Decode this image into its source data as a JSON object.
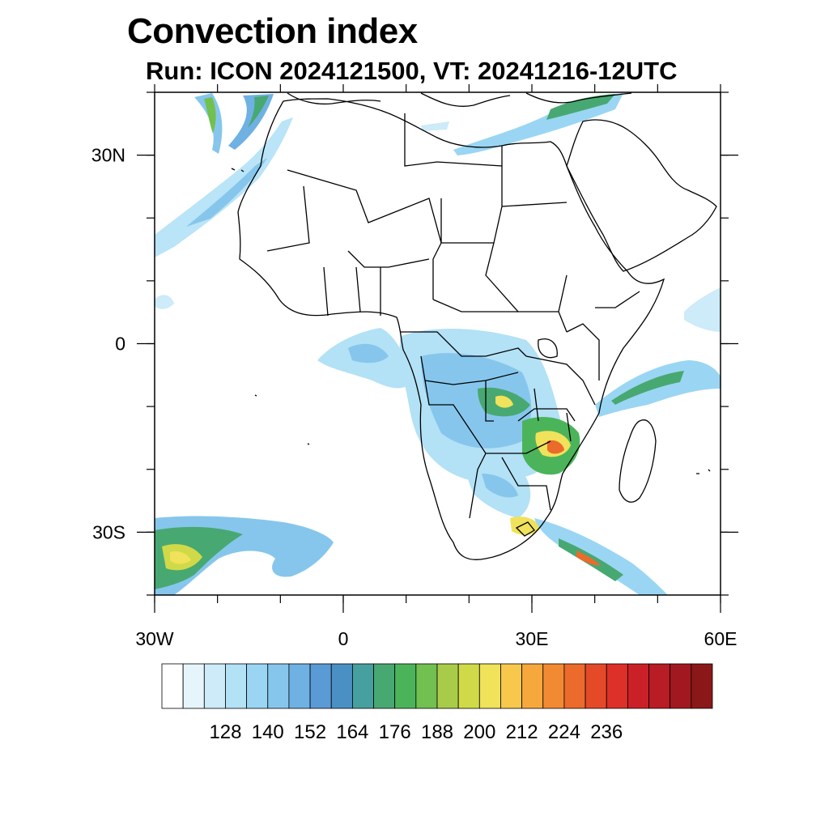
{
  "title": "Convection index",
  "subtitle": "Run: ICON 2024121500,  VT: 20241216-12UTC",
  "map": {
    "projection": "cylindrical-equidistant",
    "lon_range": [
      -30,
      60
    ],
    "lat_range": [
      -40,
      40
    ],
    "x_ticks": [
      {
        "lon": -30,
        "label": "30W"
      },
      {
        "lon": 0,
        "label": "0"
      },
      {
        "lon": 30,
        "label": "30E"
      },
      {
        "lon": 60,
        "label": "60E"
      }
    ],
    "y_ticks": [
      {
        "lat": 30,
        "label": "30N"
      },
      {
        "lat": 0,
        "label": "0"
      },
      {
        "lat": -30,
        "label": "30S"
      }
    ],
    "minor_lon_step": 10,
    "minor_lat_step": 10
  },
  "colorbar": {
    "labels": [
      "128",
      "140",
      "152",
      "164",
      "176",
      "188",
      "200",
      "212",
      "224",
      "236"
    ],
    "colors": [
      "#ffffff",
      "#e6f5fc",
      "#cdebf8",
      "#b3e1f6",
      "#9ad6f3",
      "#86c6ec",
      "#6fb1e2",
      "#5a9bd6",
      "#4a90c4",
      "#46a0a0",
      "#48a872",
      "#4bb45a",
      "#72c050",
      "#a8cc4a",
      "#d0da48",
      "#f0e25a",
      "#f8c84c",
      "#f6a83c",
      "#f28a34",
      "#ec6a2c",
      "#e44a28",
      "#dc3028",
      "#cc2028",
      "#b81c24",
      "#a21820",
      "#8a1818"
    ]
  },
  "colors": {
    "coastline": "#000000",
    "frame": "#000000"
  }
}
